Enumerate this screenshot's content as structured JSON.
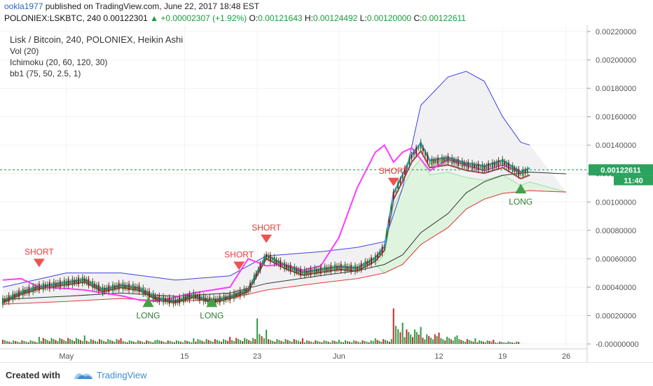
{
  "header": {
    "author": "ookla1977",
    "published_text": "published on TradingView.com, June 22, 2017 18:48 EST",
    "symbol": "POLONIEX:LSKBTC, 240",
    "last_price": "0.00122301",
    "change": "+0.00002307 (+1.92%)",
    "o_label": "O:",
    "o_value": "0.00121643",
    "h_label": "H:",
    "h_value": "0.00124492",
    "l_label": "L:",
    "l_value": "0.00120000",
    "c_label": "C:",
    "c_value": "0.00122611"
  },
  "legend": {
    "title": "Lisk / Bitcoin, 240, POLONIEX, Heikin Ashi",
    "vol": "Vol (20)",
    "ichimoku": "Ichimoku (20, 60, 120, 30)",
    "bb": "bb1 (75, 50, 2.5, 1)"
  },
  "price_tag": {
    "value": "0.00122611",
    "countdown": "11:40"
  },
  "footer": {
    "created_with": "Created with",
    "brand": "TradingView"
  },
  "colors": {
    "up": "#26a69a",
    "price_line": "#2ca25f",
    "magenta": "#ff3cff",
    "blue_band": "#4040e0",
    "cloud_green": "#9be39b",
    "red_line": "#e03a3a",
    "candle_up": "#1c7a2c",
    "candle_down": "#8b1a1a"
  },
  "chart_data": {
    "type": "candlestick",
    "x_ticks": [
      "May",
      "15",
      "23",
      "Jun",
      "12",
      "19",
      "26"
    ],
    "y_ticks": [
      "0.00220000",
      "0.00200000",
      "0.00180000",
      "0.00160000",
      "0.00140000",
      "0.00120000",
      "0.00100000",
      "0.00080000",
      "0.00060000",
      "0.00040000",
      "0.00020000",
      "-0.00000000"
    ],
    "ylim": [
      0.0,
      0.0022
    ],
    "current_price": 0.00122611,
    "signals": [
      {
        "type": "SHORT",
        "date": "Apr-30",
        "price": 0.0006
      },
      {
        "type": "LONG",
        "date": "May-11",
        "price": 0.00026
      },
      {
        "type": "LONG",
        "date": "May-18",
        "price": 0.00026
      },
      {
        "type": "SHORT",
        "date": "May-21",
        "price": 0.00058
      },
      {
        "type": "SHORT",
        "date": "May-24",
        "price": 0.00077
      },
      {
        "type": "SHORT",
        "date": "Jun-07",
        "price": 0.00117
      },
      {
        "type": "LONG",
        "date": "Jun-21",
        "price": 0.00106
      }
    ],
    "price_series": [
      [
        "Apr-26",
        0.0003
      ],
      [
        "Apr-28",
        0.00036
      ],
      [
        "Apr-30",
        0.0004
      ],
      [
        "May-02",
        0.00043
      ],
      [
        "May-04",
        0.00045
      ],
      [
        "May-06",
        0.00038
      ],
      [
        "May-08",
        0.00041
      ],
      [
        "May-10",
        0.00039
      ],
      [
        "May-12",
        0.00032
      ],
      [
        "May-14",
        0.0003
      ],
      [
        "May-16",
        0.00034
      ],
      [
        "May-18",
        0.0003
      ],
      [
        "May-20",
        0.00033
      ],
      [
        "May-22",
        0.00038
      ],
      [
        "May-24",
        0.00062
      ],
      [
        "May-26",
        0.00055
      ],
      [
        "May-28",
        0.0005
      ],
      [
        "May-30",
        0.00052
      ],
      [
        "Jun-01",
        0.00054
      ],
      [
        "Jun-03",
        0.00053
      ],
      [
        "Jun-05",
        0.0006
      ],
      [
        "Jun-06",
        0.00068
      ],
      [
        "Jun-07",
        0.00105
      ],
      [
        "Jun-08",
        0.00118
      ],
      [
        "Jun-09",
        0.00132
      ],
      [
        "Jun-10",
        0.0014
      ],
      [
        "Jun-11",
        0.00128
      ],
      [
        "Jun-13",
        0.0013
      ],
      [
        "Jun-15",
        0.00126
      ],
      [
        "Jun-17",
        0.00124
      ],
      [
        "Jun-19",
        0.00128
      ],
      [
        "Jun-21",
        0.0012
      ],
      [
        "Jun-22",
        0.00122611
      ]
    ],
    "magenta_series": [
      [
        "Apr-26",
        0.00045
      ],
      [
        "Apr-28",
        0.00046
      ],
      [
        "Apr-30",
        0.0004
      ],
      [
        "May-02",
        0.00039
      ],
      [
        "May-04",
        0.00038
      ],
      [
        "May-06",
        0.00036
      ],
      [
        "May-08",
        0.00034
      ],
      [
        "May-10",
        0.00031
      ],
      [
        "May-12",
        0.0003
      ],
      [
        "May-14",
        0.00033
      ],
      [
        "May-16",
        0.00036
      ],
      [
        "May-18",
        0.00038
      ],
      [
        "May-20",
        0.0004
      ],
      [
        "May-22",
        0.0006
      ],
      [
        "May-24",
        0.00055
      ],
      [
        "May-26",
        0.00056
      ],
      [
        "May-28",
        0.00052
      ],
      [
        "May-30",
        0.00055
      ],
      [
        "Jun-01",
        0.00075
      ],
      [
        "Jun-03",
        0.0011
      ],
      [
        "Jun-05",
        0.00135
      ],
      [
        "Jun-06",
        0.0014
      ],
      [
        "Jun-07",
        0.00128
      ],
      [
        "Jun-08",
        0.00135
      ],
      [
        "Jun-09",
        0.00138
      ],
      [
        "Jun-10",
        0.0013
      ],
      [
        "Jun-11",
        0.00122
      ],
      [
        "Jun-13",
        0.0013
      ],
      [
        "Jun-15",
        0.00126
      ],
      [
        "Jun-17",
        0.00122
      ],
      [
        "Jun-19",
        0.00126
      ],
      [
        "Jun-21",
        0.00121
      ]
    ],
    "upper_band": [
      [
        "Apr-26",
        0.0004
      ],
      [
        "May-02",
        0.0005
      ],
      [
        "May-08",
        0.0005
      ],
      [
        "May-14",
        0.00045
      ],
      [
        "May-20",
        0.00048
      ],
      [
        "May-24",
        0.00062
      ],
      [
        "May-30",
        0.00065
      ],
      [
        "Jun-03",
        0.00068
      ],
      [
        "Jun-06",
        0.00072
      ],
      [
        "Jun-08",
        0.0011
      ],
      [
        "Jun-10",
        0.00168
      ],
      [
        "Jun-13",
        0.00188
      ],
      [
        "Jun-15",
        0.00192
      ],
      [
        "Jun-17",
        0.00185
      ],
      [
        "Jun-19",
        0.0016
      ],
      [
        "Jun-21",
        0.00142
      ],
      [
        "Jun-22",
        0.0014
      ]
    ],
    "lower_series": [
      [
        "Apr-26",
        0.00028
      ],
      [
        "May-02",
        0.0003
      ],
      [
        "May-08",
        0.00032
      ],
      [
        "May-14",
        0.0003
      ],
      [
        "May-20",
        0.00032
      ],
      [
        "May-24",
        0.00038
      ],
      [
        "May-30",
        0.00043
      ],
      [
        "Jun-03",
        0.00046
      ],
      [
        "Jun-06",
        0.0005
      ],
      [
        "Jun-08",
        0.00056
      ],
      [
        "Jun-10",
        0.0007
      ],
      [
        "Jun-13",
        0.00082
      ],
      [
        "Jun-15",
        0.00095
      ],
      [
        "Jun-17",
        0.00102
      ],
      [
        "Jun-19",
        0.00106
      ],
      [
        "Jun-22",
        0.00108
      ],
      [
        "Jun-26",
        0.00107
      ]
    ],
    "volume": [
      [
        "Apr-26",
        3e-05
      ],
      [
        "Apr-30",
        5e-05
      ],
      [
        "May-04",
        6e-05
      ],
      [
        "May-08",
        4e-05
      ],
      [
        "May-12",
        3e-05
      ],
      [
        "May-16",
        4e-05
      ],
      [
        "May-20",
        5e-05
      ],
      [
        "May-23",
        0.00018
      ],
      [
        "May-24",
        0.0001
      ],
      [
        "May-28",
        4e-05
      ],
      [
        "Jun-01",
        3e-05
      ],
      [
        "Jun-05",
        4e-05
      ],
      [
        "Jun-07",
        0.00025
      ],
      [
        "Jun-08",
        0.00015
      ],
      [
        "Jun-10",
        0.00012
      ],
      [
        "Jun-12",
        8e-05
      ],
      [
        "Jun-14",
        6e-05
      ],
      [
        "Jun-16",
        4e-05
      ],
      [
        "Jun-18",
        3e-05
      ],
      [
        "Jun-21",
        2e-05
      ]
    ]
  }
}
